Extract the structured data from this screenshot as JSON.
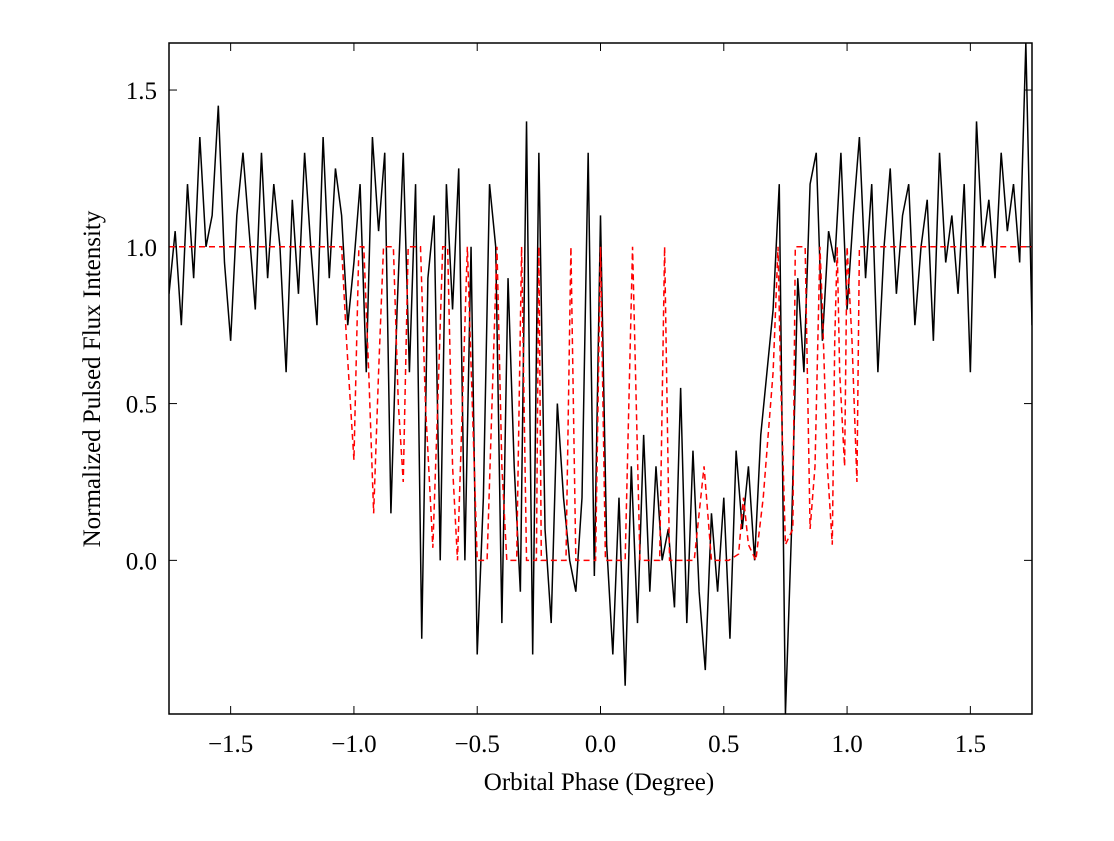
{
  "chart_data": {
    "type": "line",
    "xlabel": "Orbital Phase (Degree)",
    "ylabel": "Normalized Pulsed Flux Intensity",
    "xlim": [
      -1.75,
      1.75
    ],
    "ylim": [
      -0.49,
      1.65
    ],
    "xticks": [
      {
        "value": -1.5,
        "label": "−1.5"
      },
      {
        "value": -1.0,
        "label": "−1.0"
      },
      {
        "value": -0.5,
        "label": "−0.5"
      },
      {
        "value": 0,
        "label": "0.0"
      },
      {
        "value": 0.5,
        "label": "0.5"
      },
      {
        "value": 1.0,
        "label": "1.0"
      },
      {
        "value": 1.5,
        "label": "1.5"
      }
    ],
    "yticks": [
      {
        "value": 0,
        "label": "0.0"
      },
      {
        "value": 0.5,
        "label": "0.5"
      },
      {
        "value": 1.0,
        "label": "1.0"
      },
      {
        "value": 1.5,
        "label": "1.5"
      }
    ],
    "series": [
      {
        "color": "#000000",
        "style": "solid",
        "x": [
          -1.75,
          -1.725,
          -1.7,
          -1.675,
          -1.65,
          -1.625,
          -1.6,
          -1.575,
          -1.55,
          -1.525,
          -1.5,
          -1.475,
          -1.45,
          -1.425,
          -1.4,
          -1.375,
          -1.35,
          -1.325,
          -1.3,
          -1.275,
          -1.25,
          -1.225,
          -1.2,
          -1.175,
          -1.15,
          -1.125,
          -1.1,
          -1.075,
          -1.05,
          -1.025,
          -1.0,
          -0.975,
          -0.95,
          -0.925,
          -0.9,
          -0.875,
          -0.85,
          -0.825,
          -0.8,
          -0.775,
          -0.75,
          -0.725,
          -0.7,
          -0.675,
          -0.65,
          -0.625,
          -0.6,
          -0.575,
          -0.55,
          -0.525,
          -0.5,
          -0.475,
          -0.45,
          -0.425,
          -0.4,
          -0.375,
          -0.35,
          -0.325,
          -0.3,
          -0.275,
          -0.25,
          -0.225,
          -0.2,
          -0.175,
          -0.15,
          -0.125,
          -0.1,
          -0.075,
          -0.05,
          -0.025,
          0.0,
          0.025,
          0.05,
          0.075,
          0.1,
          0.125,
          0.15,
          0.175,
          0.2,
          0.225,
          0.25,
          0.275,
          0.3,
          0.325,
          0.35,
          0.375,
          0.4,
          0.425,
          0.45,
          0.475,
          0.5,
          0.525,
          0.55,
          0.575,
          0.6,
          0.625,
          0.65,
          0.675,
          0.7,
          0.725,
          0.75,
          0.775,
          0.8,
          0.825,
          0.85,
          0.875,
          0.9,
          0.925,
          0.95,
          0.975,
          1.0,
          1.025,
          1.05,
          1.075,
          1.1,
          1.125,
          1.15,
          1.175,
          1.2,
          1.225,
          1.25,
          1.275,
          1.3,
          1.325,
          1.35,
          1.375,
          1.4,
          1.425,
          1.45,
          1.475,
          1.5,
          1.525,
          1.55,
          1.575,
          1.6,
          1.625,
          1.65,
          1.675,
          1.7,
          1.725,
          1.75
        ],
        "values": [
          0.85,
          1.05,
          0.75,
          1.2,
          0.9,
          1.35,
          1.0,
          1.1,
          1.45,
          0.95,
          0.7,
          1.1,
          1.3,
          1.05,
          0.8,
          1.3,
          0.9,
          1.2,
          1.0,
          0.6,
          1.15,
          0.85,
          1.3,
          1.0,
          0.75,
          1.35,
          0.9,
          1.25,
          1.1,
          0.75,
          0.95,
          1.2,
          0.6,
          1.35,
          1.05,
          1.3,
          0.15,
          0.8,
          1.3,
          0.6,
          1.2,
          -0.25,
          0.9,
          1.1,
          0.0,
          1.2,
          0.8,
          1.25,
          0.0,
          1.0,
          -0.3,
          0.2,
          1.2,
          1.0,
          -0.2,
          0.9,
          0.3,
          -0.1,
          1.4,
          -0.3,
          1.3,
          0.1,
          -0.2,
          0.5,
          0.2,
          0.0,
          -0.1,
          0.2,
          1.3,
          -0.05,
          1.1,
          0.05,
          -0.3,
          0.2,
          -0.4,
          0.3,
          -0.2,
          0.4,
          -0.1,
          0.3,
          0.0,
          0.1,
          -0.15,
          0.55,
          -0.2,
          0.35,
          -0.1,
          -0.35,
          0.15,
          -0.1,
          0.2,
          -0.25,
          0.35,
          0.1,
          0.3,
          0.0,
          0.4,
          0.6,
          0.8,
          1.2,
          -0.49,
          0.1,
          0.9,
          0.6,
          1.2,
          1.3,
          0.7,
          1.05,
          0.95,
          1.3,
          0.8,
          1.1,
          1.35,
          0.9,
          1.2,
          0.6,
          1.0,
          1.25,
          0.85,
          1.1,
          1.2,
          0.75,
          1.0,
          1.15,
          0.7,
          1.3,
          0.95,
          1.1,
          0.85,
          1.2,
          0.6,
          1.4,
          1.0,
          1.15,
          0.9,
          1.3,
          1.05,
          1.2,
          0.95,
          1.65,
          0.75
        ]
      },
      {
        "color": "#ff0000",
        "style": "dashed",
        "x": [
          -1.75,
          -1.05,
          -1.03,
          -1.0,
          -0.98,
          -0.96,
          -0.94,
          -0.92,
          -0.9,
          -0.88,
          -0.84,
          -0.82,
          -0.8,
          -0.78,
          -0.73,
          -0.71,
          -0.68,
          -0.66,
          -0.64,
          -0.62,
          -0.6,
          -0.58,
          -0.56,
          -0.54,
          -0.52,
          -0.5,
          -0.46,
          -0.44,
          -0.42,
          -0.4,
          -0.38,
          -0.34,
          -0.32,
          -0.3,
          -0.26,
          -0.25,
          -0.24,
          -0.14,
          -0.12,
          -0.1,
          -0.02,
          0.0,
          0.02,
          0.1,
          0.13,
          0.16,
          0.24,
          0.26,
          0.28,
          0.38,
          0.42,
          0.45,
          0.52,
          0.56,
          0.58,
          0.6,
          0.63,
          0.66,
          0.7,
          0.72,
          0.73,
          0.75,
          0.78,
          0.79,
          0.83,
          0.85,
          0.87,
          0.89,
          0.9,
          0.92,
          0.94,
          0.95,
          0.96,
          0.97,
          0.99,
          1.0,
          1.02,
          1.04,
          1.05,
          1.75
        ],
        "values": [
          1,
          1,
          0.7,
          0.32,
          1,
          1,
          0.6,
          0.15,
          0.6,
          1,
          1,
          0.5,
          0.25,
          1,
          1,
          0.5,
          0.04,
          0.5,
          1,
          1,
          0.3,
          0,
          0.5,
          1,
          0.5,
          0,
          0,
          0.5,
          1,
          0.3,
          0,
          0,
          1,
          0,
          0,
          1,
          0,
          0,
          1,
          0,
          0,
          1,
          0,
          0,
          1,
          0,
          0,
          1,
          0,
          0,
          0.3,
          0,
          0,
          0.02,
          0.2,
          0.05,
          0,
          0.2,
          0.6,
          1,
          0.6,
          0.05,
          0.1,
          1,
          1,
          0.1,
          0.3,
          1,
          0.8,
          0.3,
          0.05,
          0.7,
          1,
          0.6,
          0.3,
          1,
          0.7,
          0.25,
          1,
          1
        ]
      }
    ]
  }
}
